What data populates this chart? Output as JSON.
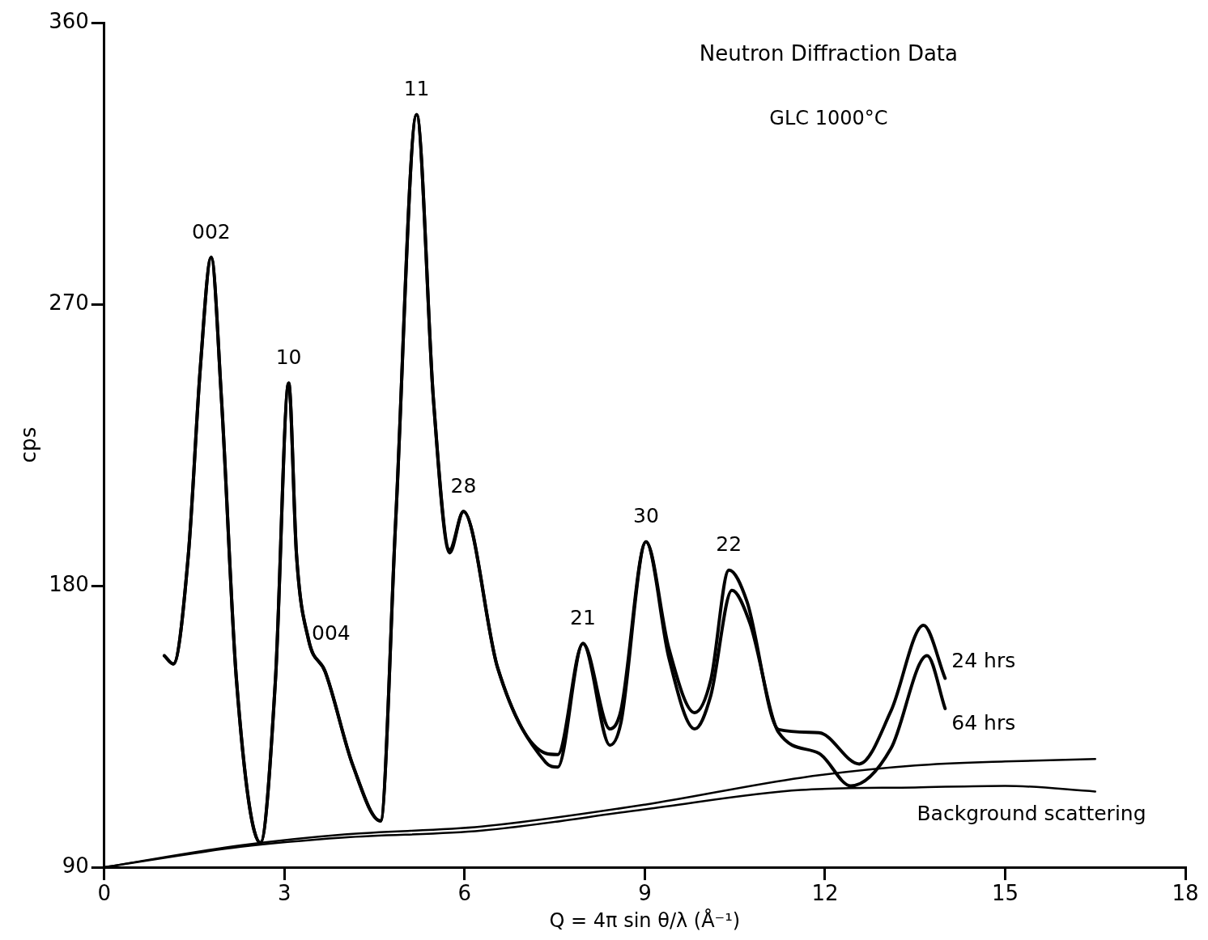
{
  "chart_data": {
    "type": "line",
    "title": "Neutron Diffraction Data",
    "subtitle": "GLC 1000°C",
    "xlabel": "Q = 4π sin θ/λ (Å⁻¹)",
    "ylabel": "cps",
    "xlim": [
      0,
      18
    ],
    "xticks": [
      0,
      3,
      6,
      9,
      12,
      15,
      18
    ],
    "ylim": [
      90,
      360
    ],
    "yticks": [
      90,
      180,
      270,
      360
    ],
    "grid": false,
    "legend": false,
    "marker": "none",
    "line_style": "solid",
    "series": [
      {
        "name": "24 hrs",
        "color": "#000000",
        "x": [
          1.0,
          1.15,
          1.4,
          1.6,
          1.78,
          1.95,
          2.2,
          2.6,
          2.85,
          3.07,
          3.2,
          3.4,
          3.68,
          4.14,
          4.6,
          4.85,
          5.2,
          5.48,
          5.75,
          5.98,
          6.55,
          7.35,
          7.55,
          7.97,
          8.42,
          8.6,
          9.02,
          9.4,
          9.83,
          10.1,
          10.4,
          10.7,
          11.23,
          11.9,
          12.57,
          13.1,
          13.64,
          14.0
        ],
        "values": [
          157.6,
          155,
          190,
          250,
          285,
          240,
          150,
          97.8,
          150,
          244.8,
          190,
          162.8,
          152.4,
          122.5,
          104.8,
          200,
          330.6,
          239.6,
          191.5,
          203.7,
          153.7,
          126.4,
          126,
          161.5,
          134.2,
          140,
          194,
          160,
          139.4,
          150,
          185,
          175,
          134,
          133,
          123,
          140,
          167.3,
          150.4
        ]
      },
      {
        "name": "64 hrs",
        "color": "#000000",
        "x": [
          1.0,
          1.15,
          1.4,
          1.6,
          1.78,
          1.95,
          2.2,
          2.6,
          2.85,
          3.07,
          3.2,
          3.4,
          3.68,
          4.14,
          4.6,
          4.85,
          5.2,
          5.48,
          5.75,
          5.98,
          6.55,
          7.35,
          7.55,
          7.97,
          8.42,
          8.6,
          9.02,
          9.4,
          9.83,
          10.1,
          10.45,
          10.75,
          11.23,
          11.9,
          12.43,
          13.1,
          13.7,
          14.0
        ],
        "values": [
          157.6,
          155,
          190,
          250,
          285,
          240,
          150,
          97.8,
          150,
          244.8,
          190,
          162.8,
          152.4,
          122.5,
          104.8,
          200,
          330.6,
          239.6,
          190.5,
          203.7,
          153.7,
          123.5,
          122,
          161.5,
          129,
          136,
          194,
          157,
          134.2,
          145,
          178.5,
          168,
          133,
          126.4,
          116,
          128,
          157.6,
          140.7
        ]
      },
      {
        "color": "#000000",
        "x": [
          0,
          2.27,
          4,
          6.28,
          9,
          11.6,
          13.5,
          15,
          16.5
        ],
        "values": [
          90,
          97,
          100.5,
          103,
          110,
          118.6,
          122.5,
          123.8,
          124.6
        ]
      },
      {
        "color": "#000000",
        "x": [
          0,
          2.27,
          4,
          6.28,
          9,
          11.6,
          13.5,
          15,
          16.5
        ],
        "values": [
          90,
          96.5,
          99.5,
          101.7,
          108.5,
          114.7,
          115.5,
          116,
          114.2
        ]
      }
    ],
    "annotations": [
      {
        "text": "002",
        "x": 1.78,
        "y": 285
      },
      {
        "text": "10",
        "x": 3.07,
        "y": 244.8
      },
      {
        "text": "004",
        "x": 3.4,
        "y": 162.8
      },
      {
        "text": "11",
        "x": 5.2,
        "y": 330.6
      },
      {
        "text": "28",
        "x": 5.98,
        "y": 203.7
      },
      {
        "text": "21",
        "x": 7.97,
        "y": 161.5
      },
      {
        "text": "30",
        "x": 9.02,
        "y": 194
      },
      {
        "text": "22",
        "x": 10.4,
        "y": 185
      },
      "Background scattering"
    ]
  }
}
